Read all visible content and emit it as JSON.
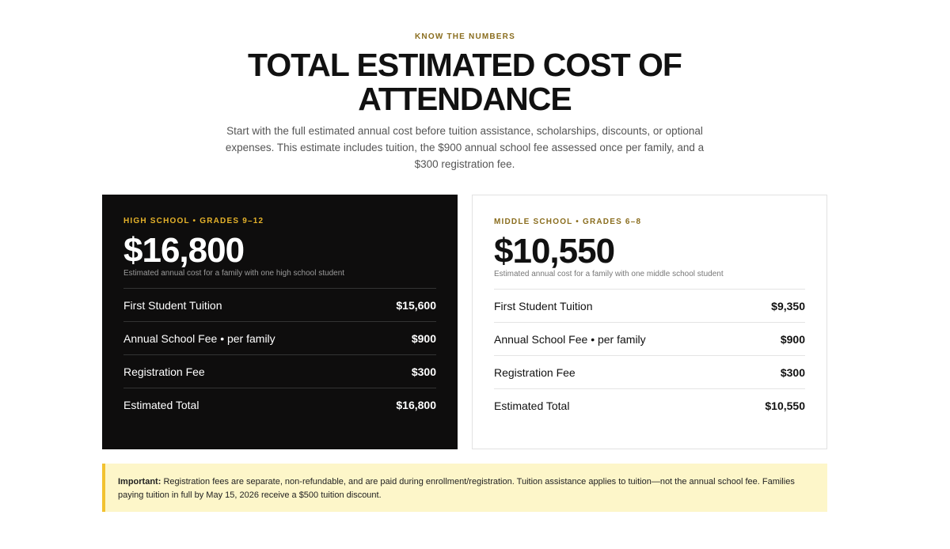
{
  "header": {
    "eyebrow": "KNOW THE NUMBERS",
    "title": "TOTAL ESTIMATED COST OF ATTENDANCE",
    "intro": "Start with the full estimated annual cost before tuition assistance, scholarships, discounts, or optional expenses. This estimate includes tuition, the $900 annual school fee assessed once per family, and a $300 registration fee."
  },
  "cards": [
    {
      "label": "HIGH SCHOOL • GRADES 9–12",
      "amount": "$16,800",
      "caption": "Estimated annual cost for a family with one high school student",
      "rows": [
        [
          "First Student Tuition",
          "$15,600"
        ],
        [
          "Annual School Fee • per family",
          "$900"
        ],
        [
          "Registration Fee",
          "$300"
        ],
        [
          "Estimated Total",
          "$16,800"
        ]
      ]
    },
    {
      "label": "MIDDLE SCHOOL • GRADES 6–8",
      "amount": "$10,550",
      "caption": "Estimated annual cost for a family with one middle school student",
      "rows": [
        [
          "First Student Tuition",
          "$9,350"
        ],
        [
          "Annual School Fee • per family",
          "$900"
        ],
        [
          "Registration Fee",
          "$300"
        ],
        [
          "Estimated Total",
          "$10,550"
        ]
      ]
    }
  ],
  "notice": {
    "label": "Important:",
    "text": "Registration fees are separate, non-refundable, and are paid during enrollment/registration. Tuition assistance applies to tuition—not the annual school fee. Families paying tuition in full by May 15, 2026 receive a $500 tuition discount."
  }
}
